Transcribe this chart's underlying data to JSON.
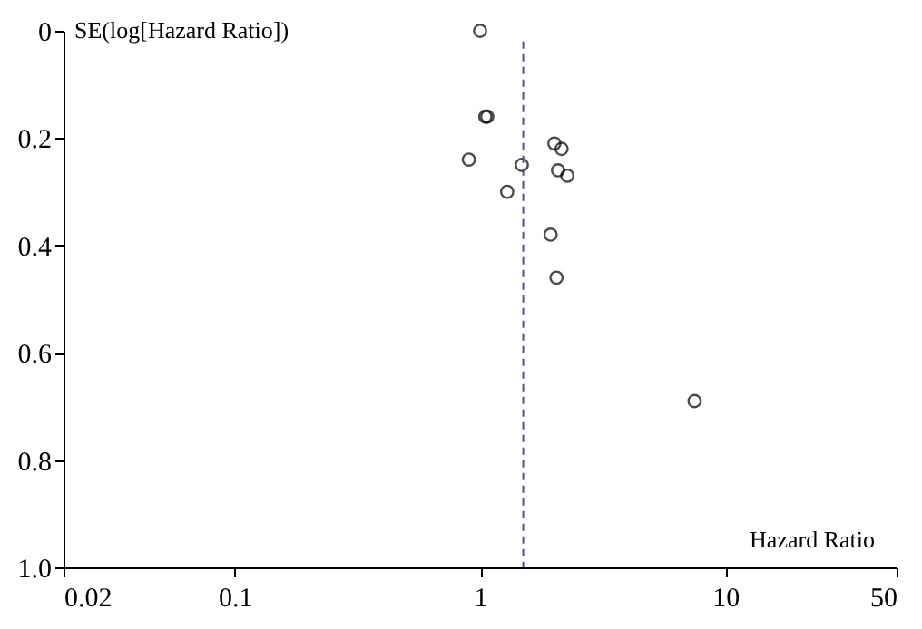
{
  "chart_data": {
    "type": "scatter",
    "xlabel": "Hazard Ratio",
    "ylabel": "SE(log[Hazard Ratio])",
    "series": [
      {
        "color": "#000000",
        "marker": "circle",
        "x": [
          1.0,
          1.05,
          1.07,
          0.9,
          1.48,
          2.01,
          2.15,
          2.08,
          2.27,
          1.29,
          1.94,
          2.05,
          7.5
        ],
        "values": [
          0.0,
          0.16,
          0.16,
          0.24,
          0.25,
          0.21,
          0.22,
          0.26,
          0.27,
          0.3,
          0.38,
          0.46,
          0.69
        ]
      }
    ],
    "log": "x",
    "xlim": [
      0.02,
      50
    ],
    "xticks": [
      0.02,
      0.1,
      1,
      10,
      50
    ],
    "ylim": [
      1.0,
      0
    ],
    "yticks": [
      0,
      0.2,
      0.4,
      0.6,
      0.8,
      {
        "value": 1.0,
        "label": "1.0"
      }
    ],
    "ref_lines": [
      {
        "axis": "x",
        "value": 1.5,
        "color": "#5050a0",
        "line_style": "dashed"
      }
    ],
    "grid": false
  }
}
